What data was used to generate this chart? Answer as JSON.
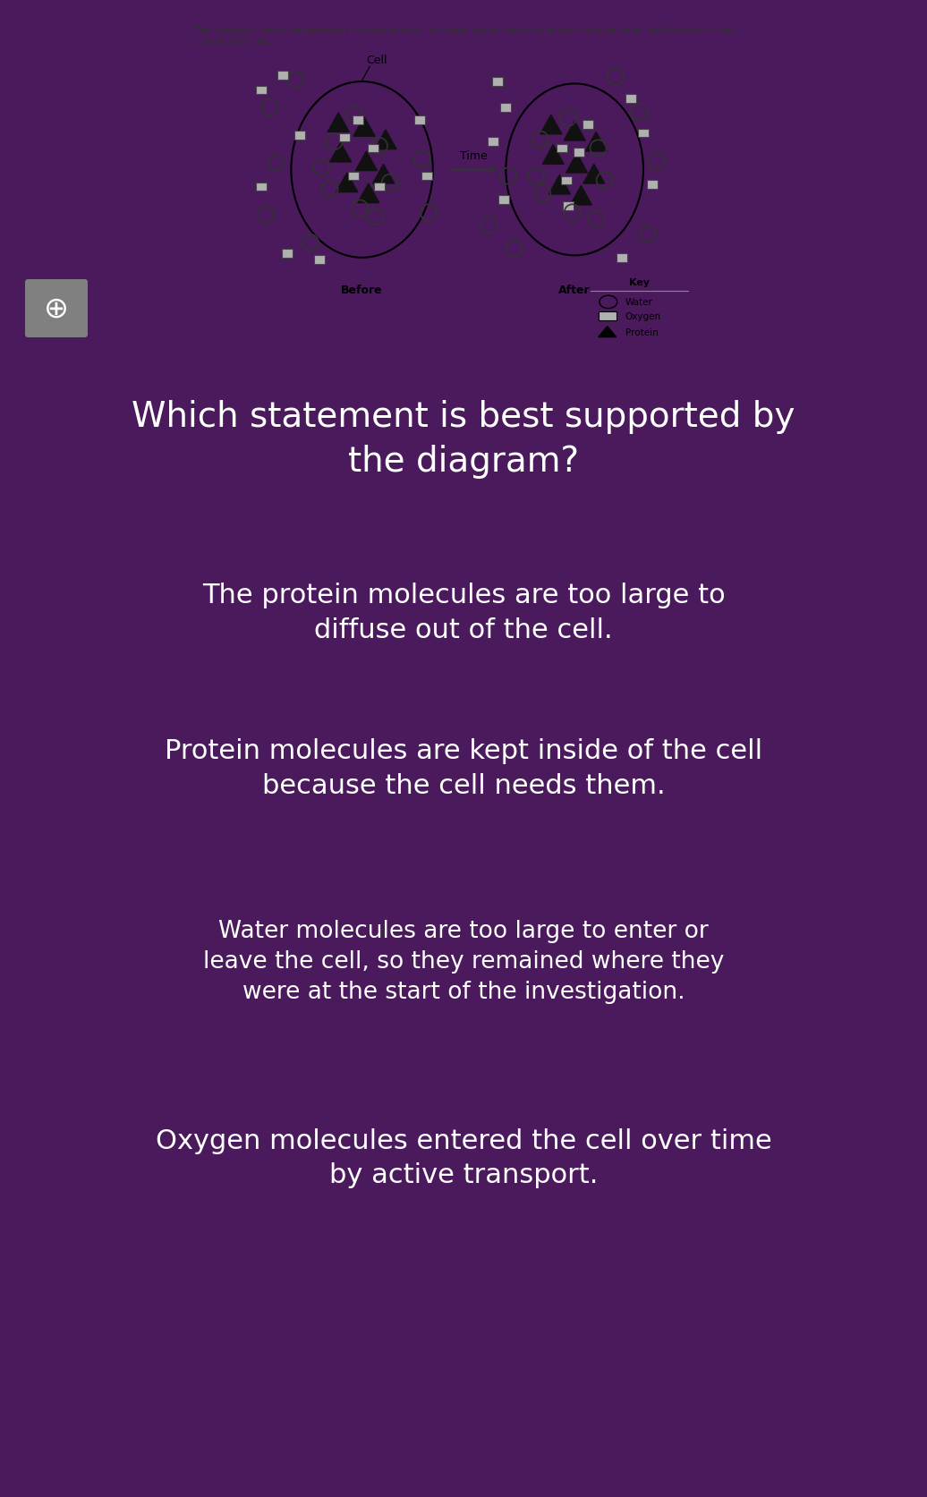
{
  "bg_color": "#4a1a5c",
  "white_card_bg": "#ffffff",
  "description_text": "The diagram below represents the distribution of some molecules inside and outside of an artificial cell over\na period of time.",
  "question_text": "Which statement is best supported by\nthe diagram?",
  "question_color": "#ffffff",
  "answers": [
    {
      "text": "The protein molecules are too large to\ndiffuse out of the cell.",
      "bg_color": "#4472c4",
      "text_color": "#ffffff"
    },
    {
      "text": "Protein molecules are kept inside of the cell\nbecause the cell needs them.",
      "bg_color": "#2a9d8f",
      "text_color": "#ffffff"
    },
    {
      "text": "Water molecules are too large to enter or\nleave the cell, so they remained where they\nwere at the start of the investigation.",
      "bg_color": "#e9a800",
      "text_color": "#ffffff"
    },
    {
      "text": "Oxygen molecules entered the cell over time\nby active transport.",
      "bg_color": "#e05070",
      "text_color": "#ffffff"
    }
  ],
  "before_label": "Before",
  "after_label": "After",
  "time_label": "Time",
  "cell_label": "Cell",
  "key_title": "Key",
  "key_items": [
    {
      "label": "Water",
      "shape": "circle"
    },
    {
      "label": "Oxygen",
      "shape": "square"
    },
    {
      "label": "Protein",
      "shape": "triangle"
    }
  ]
}
